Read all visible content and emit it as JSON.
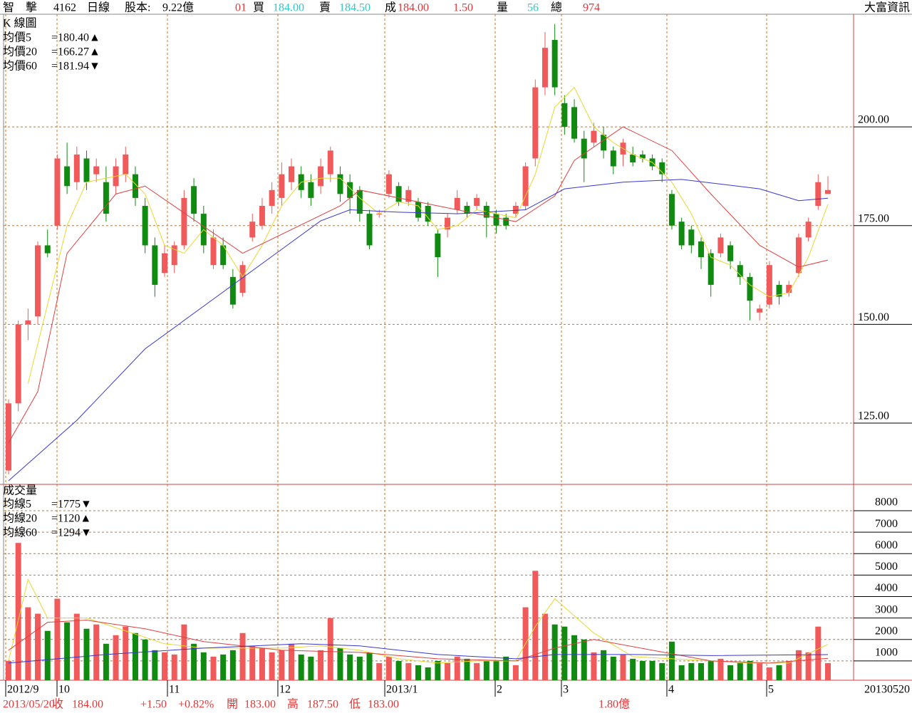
{
  "header": {
    "stock": "智　擊",
    "code": "4162",
    "period": "日線",
    "capital_label": "股本:",
    "capital": "9.22億",
    "time": "01",
    "bid_label": "買",
    "bid": "184.00",
    "ask_label": "賣",
    "ask": "184.50",
    "trade_label": "成",
    "trade": "184.00",
    "change": "1.50",
    "volume_label": "量",
    "volume": "56",
    "total_label": "總",
    "total": "974",
    "source": "大富資訊"
  },
  "footer": {
    "date": "2013/05/20",
    "close_label": "收",
    "close": "184.00",
    "change": "+1.50",
    "change_pct": "+0.82%",
    "open_label": "開",
    "open": "183.00",
    "high_label": "高",
    "high": "187.50",
    "low_label": "低",
    "low": "183.00",
    "amount": "1.80億",
    "end_date": "20130520"
  },
  "chart_data": [
    {
      "type": "candlestick",
      "title": "K 線圖",
      "up_color": "#f05a5a",
      "down_color": "#108a10",
      "open": [
        113,
        130,
        150,
        152,
        170,
        175,
        190,
        186,
        192,
        188,
        186,
        185,
        188,
        188,
        180,
        170,
        163,
        165,
        170,
        185,
        178,
        165,
        170,
        162,
        158,
        172,
        175,
        180,
        182,
        186,
        188,
        186,
        185,
        188,
        188,
        186,
        184,
        178,
        178,
        183,
        185,
        181,
        181,
        180,
        173,
        174,
        179,
        180,
        180,
        180,
        178,
        177,
        178,
        180,
        192,
        210,
        222,
        206,
        205,
        197,
        196,
        198,
        194,
        193,
        193,
        193,
        192,
        191,
        183,
        176,
        174,
        171,
        168,
        168,
        170,
        165,
        162,
        153,
        155,
        160,
        158,
        163,
        172,
        180,
        183
      ],
      "high": [
        131,
        151,
        154,
        171,
        174,
        193,
        196,
        195,
        194,
        192,
        190,
        192,
        195,
        190,
        182,
        172,
        170,
        171,
        184,
        187,
        180,
        174,
        172,
        164,
        166,
        178,
        182,
        186,
        191,
        192,
        190,
        188,
        192,
        195,
        190,
        188,
        185,
        179,
        179,
        189,
        186,
        185,
        182,
        181,
        174,
        178,
        184,
        181,
        183,
        181,
        179,
        178,
        181,
        191,
        212,
        224,
        226,
        208,
        207,
        199,
        201,
        200,
        195,
        197,
        195,
        194,
        193,
        192,
        184,
        177,
        175,
        172,
        169,
        173,
        171,
        166,
        163,
        155,
        166,
        161,
        161,
        173,
        177,
        188,
        187.5
      ],
      "low": [
        112,
        128,
        146,
        150,
        167,
        174,
        183,
        184,
        184,
        186,
        176,
        183,
        186,
        180,
        168,
        157,
        162,
        163,
        169,
        176,
        168,
        164,
        164,
        154,
        157,
        171,
        174,
        178,
        180,
        184,
        182,
        180,
        183,
        186,
        181,
        178,
        176,
        169,
        177,
        182,
        180,
        180,
        176,
        175,
        162,
        172,
        178,
        177,
        179,
        172,
        173,
        174,
        177,
        179,
        190,
        208,
        208,
        198,
        196,
        186,
        195,
        192,
        188,
        190,
        190,
        191,
        189,
        186,
        174,
        169,
        168,
        164,
        157,
        167,
        164,
        160,
        151,
        151,
        154,
        155,
        157,
        162,
        171,
        179,
        183
      ],
      "close": [
        130,
        150,
        151,
        170,
        168,
        192,
        185,
        193,
        186,
        190,
        178,
        190,
        193,
        182,
        170,
        160,
        168,
        170,
        182,
        178,
        170,
        172,
        165,
        155,
        165,
        176,
        180,
        184,
        188,
        190,
        184,
        182,
        190,
        194,
        183,
        182,
        178,
        170,
        178,
        188,
        181,
        184,
        177,
        176,
        167,
        177,
        182,
        178,
        182,
        177,
        175,
        175,
        180,
        190,
        210,
        220,
        210,
        200,
        197,
        192,
        199,
        194,
        190,
        196,
        191,
        192,
        190,
        188,
        175,
        170,
        170,
        167,
        160,
        172,
        166,
        162,
        156,
        154,
        165,
        157,
        160,
        172,
        176,
        186,
        184
      ],
      "lines": [
        {
          "name": "均價5",
          "label": "=180.40▲",
          "color": "#e8d830",
          "x": [
            2,
            4,
            6,
            8,
            10,
            12,
            14,
            16,
            18,
            20,
            22,
            24,
            26,
            28,
            30,
            32,
            34,
            36,
            38,
            40,
            42,
            44,
            46,
            48,
            50,
            52,
            54,
            56,
            58,
            60,
            62,
            64,
            66,
            68,
            70,
            72,
            74,
            76,
            78,
            80,
            82,
            84
          ],
          "values": [
            135,
            155,
            175,
            186,
            187,
            188,
            183,
            170,
            168,
            174,
            170,
            162,
            170,
            180,
            186,
            187,
            187,
            182,
            178,
            181,
            180,
            174,
            175,
            179,
            178,
            177,
            188,
            205,
            210,
            200,
            196,
            193,
            191,
            186,
            178,
            167,
            165,
            160,
            157,
            158,
            167,
            180.4
          ]
        },
        {
          "name": "均價20",
          "label": "=166.27▲",
          "color": "#e04040",
          "x": [
            0,
            3,
            6,
            11,
            14,
            24,
            34,
            36,
            44,
            52,
            56,
            58,
            63,
            68,
            72,
            77,
            81,
            84
          ],
          "values": [
            120,
            133,
            168,
            183,
            185,
            168,
            180,
            184,
            180,
            176,
            182.5,
            191.5,
            200,
            194,
            183,
            170,
            164.5,
            166.27
          ]
        },
        {
          "name": "均價60",
          "label": "=181.94▼",
          "color": "#3838d0",
          "x": [
            0,
            7,
            14,
            21,
            27,
            32,
            35,
            40,
            46,
            53,
            57,
            63,
            69,
            77,
            81,
            84
          ],
          "values": [
            110.4,
            125.7,
            143.8,
            156.4,
            167.2,
            176.2,
            179,
            178.4,
            178,
            179,
            184.3,
            186,
            186.7,
            184.3,
            181.3,
            181.94
          ]
        }
      ],
      "xlim": [
        -0.51,
        86.63
      ],
      "ylim": [
        109.5,
        228.5
      ],
      "yticks": [
        {
          "value": 125,
          "label": "125.00"
        },
        {
          "value": 150,
          "label": "150.00"
        },
        {
          "value": 175,
          "label": "175.00"
        },
        {
          "value": 200,
          "label": "200.00"
        }
      ]
    },
    {
      "type": "bar",
      "title": "成交量",
      "values": [
        1000,
        6500,
        3500,
        3200,
        2400,
        3900,
        2800,
        3200,
        2500,
        2700,
        1800,
        2200,
        2600,
        2300,
        2000,
        1500,
        1400,
        1300,
        2700,
        1800,
        1400,
        1200,
        1300,
        1500,
        2300,
        1700,
        1600,
        1400,
        1500,
        1800,
        1300,
        1200,
        1500,
        3000,
        1600,
        1300,
        1200,
        1400,
        900,
        1200,
        1000,
        900,
        800,
        700,
        1000,
        900,
        1200,
        1100,
        900,
        1000,
        1000,
        1200,
        800,
        3500,
        5200,
        3200,
        2700,
        2600,
        2200,
        2000,
        1400,
        1500,
        1200,
        1300,
        1100,
        1000,
        1000,
        900,
        1900,
        800,
        900,
        900,
        1000,
        1100,
        800,
        900,
        1000,
        900,
        700,
        800,
        1000,
        1500,
        1400,
        2600,
        900
      ],
      "lines": [
        {
          "name": "均線5",
          "label": "=1775▼",
          "color": "#e8d830",
          "x": [
            0,
            2,
            4,
            8,
            12,
            16,
            20,
            24,
            28,
            32,
            36,
            40,
            44,
            48,
            52,
            54,
            56,
            60,
            64,
            68,
            72,
            76,
            80,
            84
          ],
          "values": [
            1000,
            4800,
            3000,
            3000,
            2400,
            1800,
            1600,
            1600,
            1600,
            1700,
            1500,
            1100,
            900,
            1000,
            1000,
            2600,
            3900,
            2300,
            1200,
            1100,
            1000,
            900,
            900,
            1775
          ]
        },
        {
          "name": "均線20",
          "label": "=1120▲",
          "color": "#e04040",
          "x": [
            0,
            4,
            8,
            14,
            20,
            28,
            36,
            44,
            52,
            56,
            60,
            66,
            72,
            78,
            84
          ],
          "values": [
            1500,
            2800,
            2900,
            2500,
            1900,
            1500,
            1400,
            1100,
            1000,
            1600,
            2000,
            1500,
            1000,
            900,
            1120
          ]
        },
        {
          "name": "均線60",
          "label": "=1294▼",
          "color": "#3838d0",
          "x": [
            0,
            10,
            20,
            30,
            36,
            44,
            52,
            56,
            64,
            72,
            84
          ],
          "values": [
            900,
            1300,
            1600,
            1800,
            1700,
            1300,
            1100,
            1300,
            1300,
            1250,
            1294
          ]
        }
      ],
      "xlim": [
        -0.51,
        86.63
      ],
      "ylim": [
        100,
        9230
      ],
      "yticks": [
        1000,
        2000,
        3000,
        4000,
        5000,
        6000,
        7000,
        8000
      ],
      "xticks": [
        {
          "value": -0.29,
          "label": "2012/9"
        },
        {
          "value": 4.97,
          "label": "10"
        },
        {
          "value": 16.29,
          "label": "11"
        },
        {
          "value": 27.61,
          "label": "12"
        },
        {
          "value": 38.57,
          "label": "2013/1"
        },
        {
          "value": 49.89,
          "label": "2"
        },
        {
          "value": 56.68,
          "label": "3"
        },
        {
          "value": 67.49,
          "label": "4"
        },
        {
          "value": 77.72,
          "label": "5"
        }
      ]
    }
  ]
}
